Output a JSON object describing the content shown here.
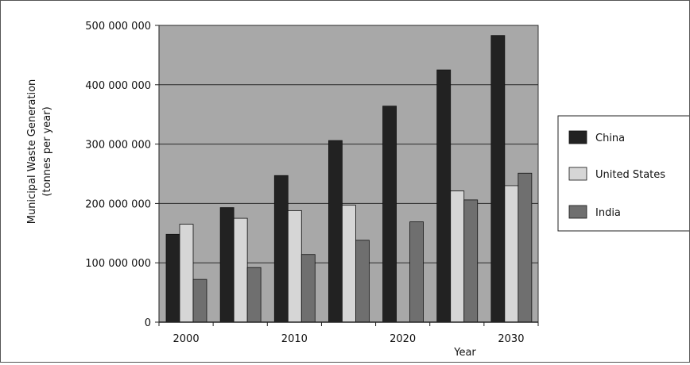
{
  "chart_data": {
    "type": "bar",
    "title": "",
    "xlabel": "Year",
    "ylabel": "Municipal Waste Generation",
    "ylabel_unit": "(tonnes per year)",
    "x": [
      2000,
      2005,
      2010,
      2015,
      2020,
      2025,
      2030
    ],
    "x_tick_labels": [
      "2000",
      "",
      "2010",
      "",
      "2020",
      "",
      "2030"
    ],
    "y_tick_labels": [
      "0",
      "100 000 000",
      "200 000 000",
      "300 000 000",
      "400 000 000",
      "500 000 000"
    ],
    "ylim": [
      0,
      500000000
    ],
    "y_ticks": [
      0,
      100000000,
      200000000,
      300000000,
      400000000,
      500000000
    ],
    "grid": true,
    "legend_position": "right",
    "series": [
      {
        "name": "China",
        "color": "#222222",
        "values": [
          148000000,
          193000000,
          247000000,
          306000000,
          364000000,
          425000000,
          483000000
        ]
      },
      {
        "name": "United States",
        "color": "#d6d6d6",
        "values": [
          165000000,
          175000000,
          188000000,
          197000000,
          0,
          221000000,
          230000000
        ]
      },
      {
        "name": "India",
        "color": "#6f6f6f",
        "values": [
          72000000,
          92000000,
          114000000,
          138000000,
          169000000,
          206000000,
          251000000
        ]
      }
    ],
    "plot_background": "#a8a8a8"
  }
}
